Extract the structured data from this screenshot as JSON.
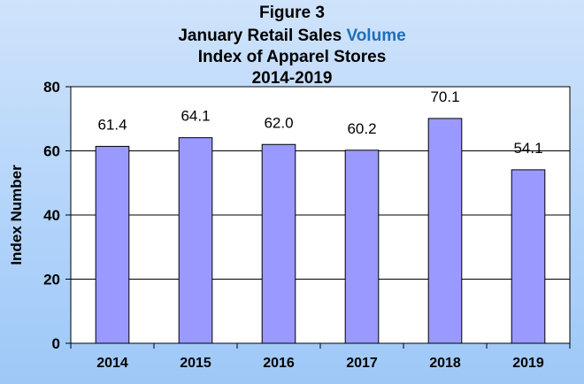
{
  "chart_data": {
    "type": "bar",
    "title_lines": [
      {
        "parts": [
          "Figure 3"
        ]
      },
      {
        "parts": [
          "January Retail Sales ",
          "Volume"
        ]
      },
      {
        "parts": [
          "Index of Apparel Stores"
        ]
      },
      {
        "parts": [
          "2014-2019"
        ]
      }
    ],
    "xlabel": "",
    "ylabel": "Index Number",
    "categories": [
      "2014",
      "2015",
      "2016",
      "2017",
      "2018",
      "2019"
    ],
    "values": [
      61.4,
      64.1,
      62.0,
      60.2,
      70.1,
      54.1
    ],
    "value_labels": [
      "61.4",
      "64.1",
      "62.0",
      "60.2",
      "70.1",
      "54.1"
    ],
    "ylim": [
      0,
      80
    ],
    "yticks": [
      "0",
      "20",
      "40",
      "60",
      "80"
    ],
    "grid": true,
    "colors": {
      "bar_fill": "#9999ff",
      "bar_stroke": "#000000",
      "plot_bg": "#ffffff",
      "accent_title": "#1f6fb8"
    }
  }
}
